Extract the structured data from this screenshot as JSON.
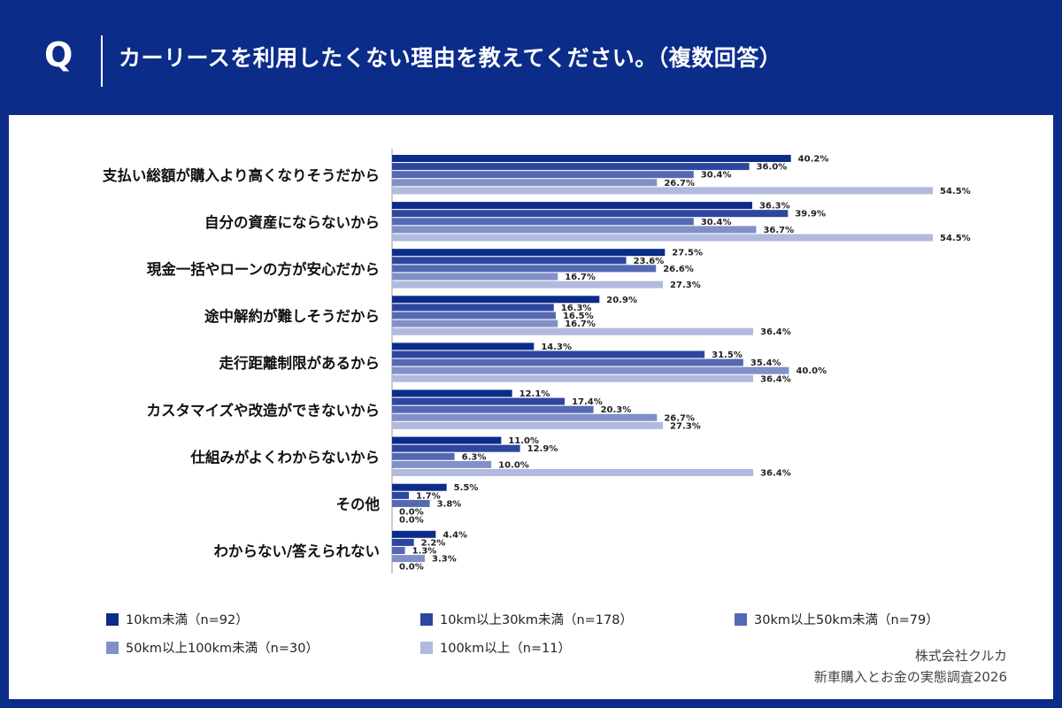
{
  "header": {
    "q_mark": "Q",
    "question": "カーリースを利用したくない理由を教えてください。（複数回答）"
  },
  "chart_data": {
    "type": "bar",
    "orientation": "horizontal",
    "categories": [
      "支払い総額が購入より高くなりそうだから",
      "自分の資産にならないから",
      "現金一括やローンの方が安心だから",
      "途中解約が難しそうだから",
      "走行距離制限があるから",
      "カスタマイズや改造ができないから",
      "仕組みがよくわからないから",
      "その他",
      "わからない/答えられない"
    ],
    "series": [
      {
        "name": "10km未満（n=92）",
        "color": "#0c2c8a",
        "values": [
          40.2,
          36.3,
          27.5,
          20.9,
          14.3,
          12.1,
          11.0,
          5.5,
          4.4
        ]
      },
      {
        "name": "10km以上30km未満（n=178）",
        "color": "#2d46a0",
        "values": [
          36.0,
          39.9,
          23.6,
          16.3,
          31.5,
          17.4,
          12.9,
          1.7,
          2.2
        ]
      },
      {
        "name": "30km以上50km未満（n=79）",
        "color": "#5569b3",
        "values": [
          30.4,
          30.4,
          26.6,
          16.5,
          35.4,
          20.3,
          6.3,
          3.8,
          1.3
        ]
      },
      {
        "name": "50km以上100km未満（n=30）",
        "color": "#8290c8",
        "values": [
          26.7,
          36.7,
          16.7,
          16.7,
          40.0,
          26.7,
          10.0,
          0.0,
          3.3
        ]
      },
      {
        "name": "100km以上（n=11）",
        "color": "#b1bade",
        "values": [
          54.5,
          54.5,
          27.3,
          36.4,
          36.4,
          27.3,
          36.4,
          0.0,
          0.0
        ]
      }
    ],
    "value_suffix": "%",
    "xlim": [
      0,
      60
    ],
    "grid": false,
    "legend": "bottom"
  },
  "credit": {
    "company": "株式会社クルカ",
    "survey": "新車購入とお金の実態調査2026"
  }
}
